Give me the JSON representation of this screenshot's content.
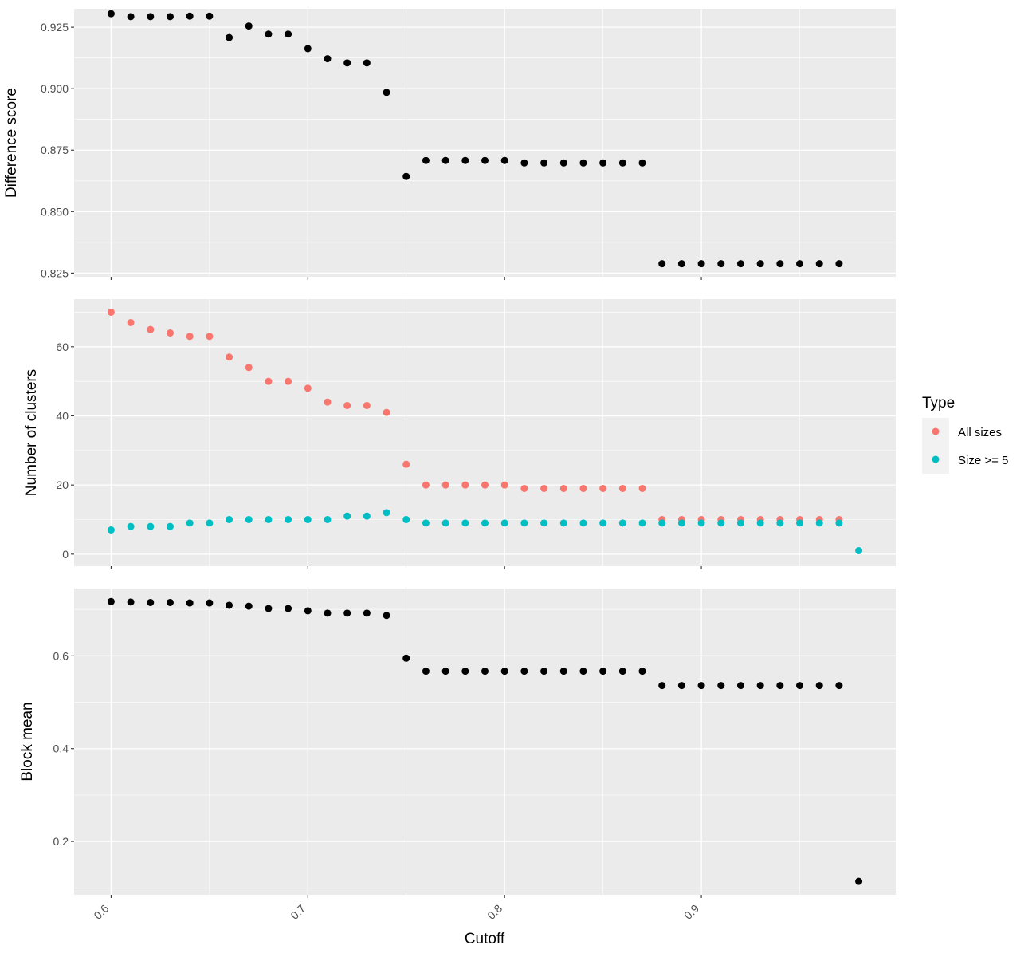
{
  "chart_data": {
    "type": "scatter",
    "x_label": "Cutoff",
    "x_range": [
      0.5812,
      0.9988
    ],
    "x_ticks": [
      0.6,
      0.7,
      0.8,
      0.9
    ],
    "x_tick_labels": [
      "0.6",
      "0.7",
      "0.8",
      "0.9"
    ],
    "panel_background": "#ebebeb",
    "grid": true,
    "legend": {
      "title": "Type",
      "position": "right",
      "entries": [
        {
          "label": "All sizes",
          "color": "#f8766d"
        },
        {
          "label": "Size >= 5",
          "color": "#00bfc4"
        }
      ]
    },
    "panels": [
      {
        "y_label": "Difference score",
        "y_range": [
          0.8235,
          0.9325
        ],
        "y_ticks": [
          0.825,
          0.85,
          0.875,
          0.9,
          0.925
        ],
        "y_tick_labels": [
          "0.825",
          "0.850",
          "0.875",
          "0.900",
          "0.925"
        ],
        "series": [
          {
            "color": "#000000",
            "x": [
              0.6,
              0.61,
              0.62,
              0.63,
              0.64,
              0.65,
              0.66,
              0.67,
              0.68,
              0.69,
              0.7,
              0.71,
              0.72,
              0.73,
              0.74,
              0.75,
              0.76,
              0.77,
              0.78,
              0.79,
              0.8,
              0.81,
              0.82,
              0.83,
              0.84,
              0.85,
              0.86,
              0.87,
              0.88,
              0.89,
              0.9,
              0.91,
              0.92,
              0.93,
              0.94,
              0.95,
              0.96,
              0.97
            ],
            "y": [
              0.9305,
              0.9293,
              0.9293,
              0.9293,
              0.9295,
              0.9295,
              0.9208,
              0.9255,
              0.9222,
              0.9222,
              0.9163,
              0.9122,
              0.9105,
              0.9105,
              0.8985,
              0.8643,
              0.8708,
              0.8708,
              0.8708,
              0.8708,
              0.8708,
              0.8698,
              0.8698,
              0.8698,
              0.8698,
              0.8698,
              0.8698,
              0.8698,
              0.8288,
              0.8288,
              0.8288,
              0.8288,
              0.8288,
              0.8288,
              0.8288,
              0.8288,
              0.8288,
              0.8288
            ]
          }
        ]
      },
      {
        "y_label": "Number of clusters",
        "y_range": [
          -3.5,
          73.8
        ],
        "y_ticks": [
          0,
          20,
          40,
          60
        ],
        "y_tick_labels": [
          "0",
          "20",
          "40",
          "60"
        ],
        "series": [
          {
            "name": "All sizes",
            "color": "#f8766d",
            "x": [
              0.6,
              0.61,
              0.62,
              0.63,
              0.64,
              0.65,
              0.66,
              0.67,
              0.68,
              0.69,
              0.7,
              0.71,
              0.72,
              0.73,
              0.74,
              0.75,
              0.76,
              0.77,
              0.78,
              0.79,
              0.8,
              0.81,
              0.82,
              0.83,
              0.84,
              0.85,
              0.86,
              0.87,
              0.88,
              0.89,
              0.9,
              0.91,
              0.92,
              0.93,
              0.94,
              0.95,
              0.96,
              0.97
            ],
            "y": [
              70,
              67,
              65,
              64,
              63,
              63,
              57,
              54,
              50,
              50,
              48,
              44,
              43,
              43,
              41,
              26,
              20,
              20,
              20,
              20,
              20,
              19,
              19,
              19,
              19,
              19,
              19,
              19,
              10,
              10,
              10,
              10,
              10,
              10,
              10,
              10,
              10,
              10
            ]
          },
          {
            "name": "Size >= 5",
            "color": "#00bfc4",
            "x": [
              0.6,
              0.61,
              0.62,
              0.63,
              0.64,
              0.65,
              0.66,
              0.67,
              0.68,
              0.69,
              0.7,
              0.71,
              0.72,
              0.73,
              0.74,
              0.75,
              0.76,
              0.77,
              0.78,
              0.79,
              0.8,
              0.81,
              0.82,
              0.83,
              0.84,
              0.85,
              0.86,
              0.87,
              0.88,
              0.89,
              0.9,
              0.91,
              0.92,
              0.93,
              0.94,
              0.95,
              0.96,
              0.97,
              0.98
            ],
            "y": [
              7,
              8,
              8,
              8,
              9,
              9,
              10,
              10,
              10,
              10,
              10,
              10,
              11,
              11,
              12,
              10,
              9,
              9,
              9,
              9,
              9,
              9,
              9,
              9,
              9,
              9,
              9,
              9,
              9,
              9,
              9,
              9,
              9,
              9,
              9,
              9,
              9,
              9,
              1
            ]
          }
        ]
      },
      {
        "y_label": "Block mean",
        "y_range": [
          0.085,
          0.745
        ],
        "y_ticks": [
          0.2,
          0.4,
          0.6
        ],
        "y_tick_labels": [
          "0.2",
          "0.4",
          "0.6"
        ],
        "series": [
          {
            "color": "#000000",
            "x": [
              0.6,
              0.61,
              0.62,
              0.63,
              0.64,
              0.65,
              0.66,
              0.67,
              0.68,
              0.69,
              0.7,
              0.71,
              0.72,
              0.73,
              0.74,
              0.75,
              0.76,
              0.77,
              0.78,
              0.79,
              0.8,
              0.81,
              0.82,
              0.83,
              0.84,
              0.85,
              0.86,
              0.87,
              0.88,
              0.89,
              0.9,
              0.91,
              0.92,
              0.93,
              0.94,
              0.95,
              0.96,
              0.97,
              0.98
            ],
            "y": [
              0.717,
              0.716,
              0.715,
              0.715,
              0.714,
              0.714,
              0.709,
              0.707,
              0.702,
              0.702,
              0.697,
              0.692,
              0.692,
              0.692,
              0.687,
              0.595,
              0.567,
              0.567,
              0.567,
              0.567,
              0.567,
              0.567,
              0.567,
              0.567,
              0.567,
              0.567,
              0.567,
              0.567,
              0.536,
              0.536,
              0.536,
              0.536,
              0.536,
              0.536,
              0.536,
              0.536,
              0.536,
              0.536,
              0.114
            ]
          }
        ]
      }
    ]
  }
}
